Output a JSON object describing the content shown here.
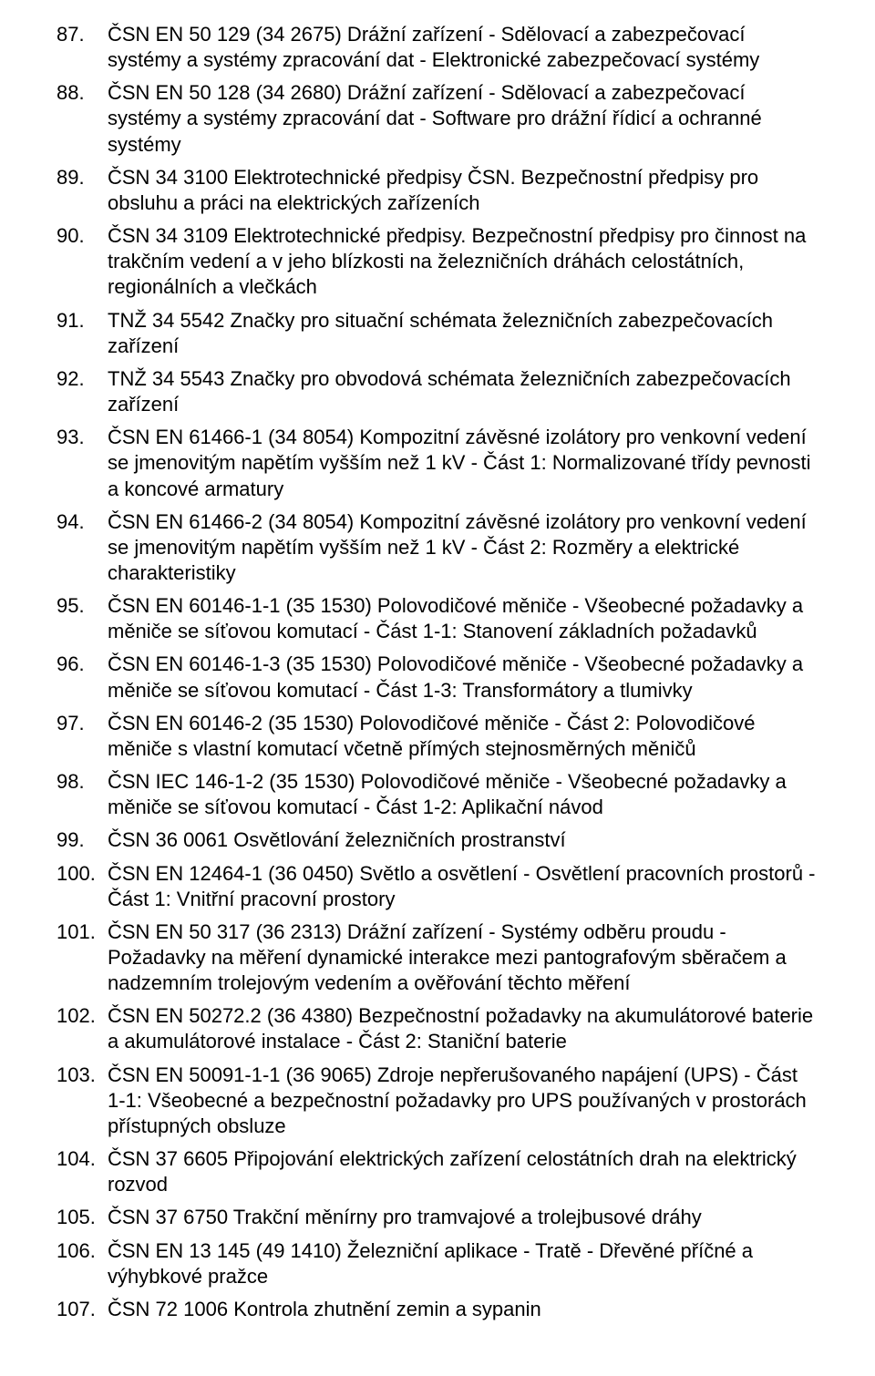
{
  "list": {
    "items": [
      {
        "num": "87.",
        "text": "ČSN EN 50 129 (34 2675) Drážní zařízení - Sdělovací a zabezpečovací systémy a systémy zpracování dat - Elektronické zabezpečovací systémy"
      },
      {
        "num": "88.",
        "text": "ČSN EN 50 128 (34 2680) Drážní zařízení - Sdělovací a zabezpečovací systémy a systémy zpracování dat - Software pro drážní řídicí a ochranné systémy"
      },
      {
        "num": "89.",
        "text": "ČSN 34 3100 Elektrotechnické předpisy ČSN. Bezpečnostní předpisy pro obsluhu a práci na elektrických zařízeních"
      },
      {
        "num": "90.",
        "text": "ČSN 34 3109 Elektrotechnické předpisy. Bezpečnostní předpisy pro činnost na trakčním vedení a v jeho blízkosti na železničních dráhách celostátních, regionálních a vlečkách"
      },
      {
        "num": "91.",
        "text": "TNŽ 34 5542 Značky pro situační schémata železničních zabezpečovacích zařízení"
      },
      {
        "num": "92.",
        "text": "TNŽ 34 5543 Značky pro obvodová schémata železničních zabezpečovacích zařízení"
      },
      {
        "num": "93.",
        "text": "ČSN EN 61466-1 (34 8054) Kompozitní závěsné izolátory pro venkovní vedení se jmenovitým napětím vyšším než 1 kV - Část 1: Normalizované třídy pevnosti a koncové armatury"
      },
      {
        "num": "94.",
        "text": "ČSN EN 61466-2 (34 8054) Kompozitní závěsné izolátory pro venkovní vedení se jmenovitým napětím vyšším než 1 kV - Část 2: Rozměry a elektrické charakteristiky"
      },
      {
        "num": "95.",
        "text": "ČSN EN 60146-1-1 (35 1530) Polovodičové měniče - Všeobecné požadavky a měniče se síťovou komutací - Část 1-1: Stanovení základních požadavků"
      },
      {
        "num": "96.",
        "text": "ČSN EN 60146-1-3 (35 1530) Polovodičové měniče - Všeobecné požadavky a měniče se síťovou komutací - Část 1-3: Transformátory a tlumivky"
      },
      {
        "num": "97.",
        "text": "ČSN EN 60146-2 (35 1530) Polovodičové měniče - Část 2: Polovodičové měniče s vlastní komutací včetně přímých stejnosměrných měničů"
      },
      {
        "num": "98.",
        "text": "ČSN IEC 146-1-2 (35 1530) Polovodičové měniče - Všeobecné požadavky a měniče se síťovou komutací - Část 1-2: Aplikační návod"
      },
      {
        "num": "99.",
        "text": "ČSN 36 0061 Osvětlování železničních prostranství"
      },
      {
        "num": "100.",
        "text": "ČSN EN 12464-1 (36 0450) Světlo a osvětlení - Osvětlení pracovních prostorů - Část 1: Vnitřní pracovní prostory"
      },
      {
        "num": "101.",
        "text": "ČSN EN 50 317 (36 2313) Drážní zařízení - Systémy odběru proudu - Požadavky na měření dynamické interakce mezi pantografovým sběračem a nadzemním trolejovým vedením a ověřování těchto měření"
      },
      {
        "num": "102.",
        "text": "ČSN EN 50272.2 (36 4380) Bezpečnostní požadavky na akumulátorové baterie a akumulátorové instalace - Část 2: Staniční baterie"
      },
      {
        "num": "103.",
        "text": "ČSN EN 50091-1-1 (36 9065) Zdroje nepřerušovaného napájení (UPS) - Část 1-1: Všeobecné a bezpečnostní požadavky pro UPS používaných v prostorách přístupných obsluze"
      },
      {
        "num": "104.",
        "text": "ČSN 37 6605 Připojování elektrických zařízení celostátních drah na elektrický rozvod"
      },
      {
        "num": "105.",
        "text": "ČSN 37 6750 Trakční měnírny pro tramvajové a trolejbusové dráhy"
      },
      {
        "num": "106.",
        "text": "ČSN EN 13 145 (49 1410) Železniční aplikace - Tratě - Dřevěné příčné a výhybkové pražce"
      },
      {
        "num": "107.",
        "text": "ČSN 72 1006 Kontrola zhutnění zemin a sypanin"
      }
    ]
  }
}
